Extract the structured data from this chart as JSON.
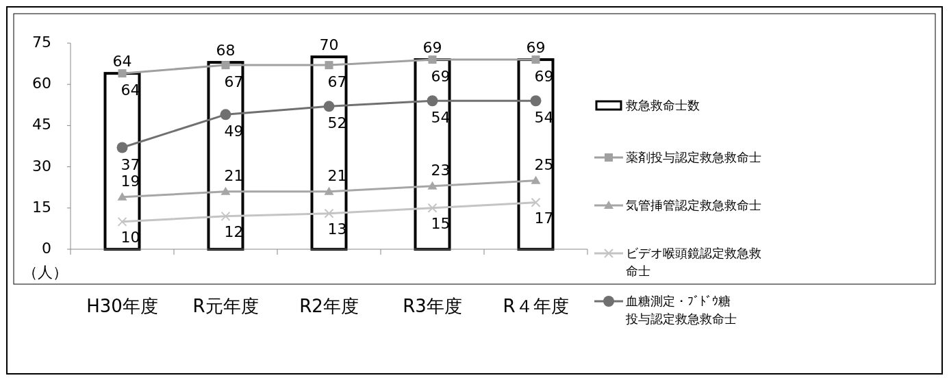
{
  "chart_data": {
    "type": "bar",
    "ylabel": "（人）",
    "categories": [
      "H30年度",
      "R元年度",
      "R2年度",
      "R3年度",
      "R４年度"
    ],
    "series": [
      {
        "name": "救急救命士数",
        "color": "#ffffff",
        "values": [
          64,
          68,
          70,
          69,
          69
        ]
      },
      {
        "name": "薬剤投与認定救急救命士",
        "type": "line",
        "color": "#a0a0a0",
        "marker": "square",
        "values": [
          64,
          67,
          67,
          69,
          69
        ]
      },
      {
        "name": "気管挿管認定救急救命士",
        "type": "line",
        "color": "#a6a6a6",
        "marker": "triangle",
        "values": [
          19,
          21,
          21,
          23,
          25
        ]
      },
      {
        "name": "ビデオ喉頭鏡認定救急救命士",
        "type": "line",
        "color": "#c4c4c4",
        "marker": "cross",
        "values": [
          10,
          12,
          13,
          15,
          17
        ]
      },
      {
        "name": "血糖測定・ﾌﾞﾄﾞｳ糖投与認定救急救命士",
        "type": "line",
        "color": "#707070",
        "marker": "circle",
        "values": [
          37,
          49,
          52,
          54,
          54
        ]
      }
    ],
    "ylim": [
      0,
      75
    ],
    "yticks": [
      0,
      15,
      30,
      45,
      60,
      75
    ],
    "grid": false,
    "legend": "right",
    "data_labels": true
  }
}
